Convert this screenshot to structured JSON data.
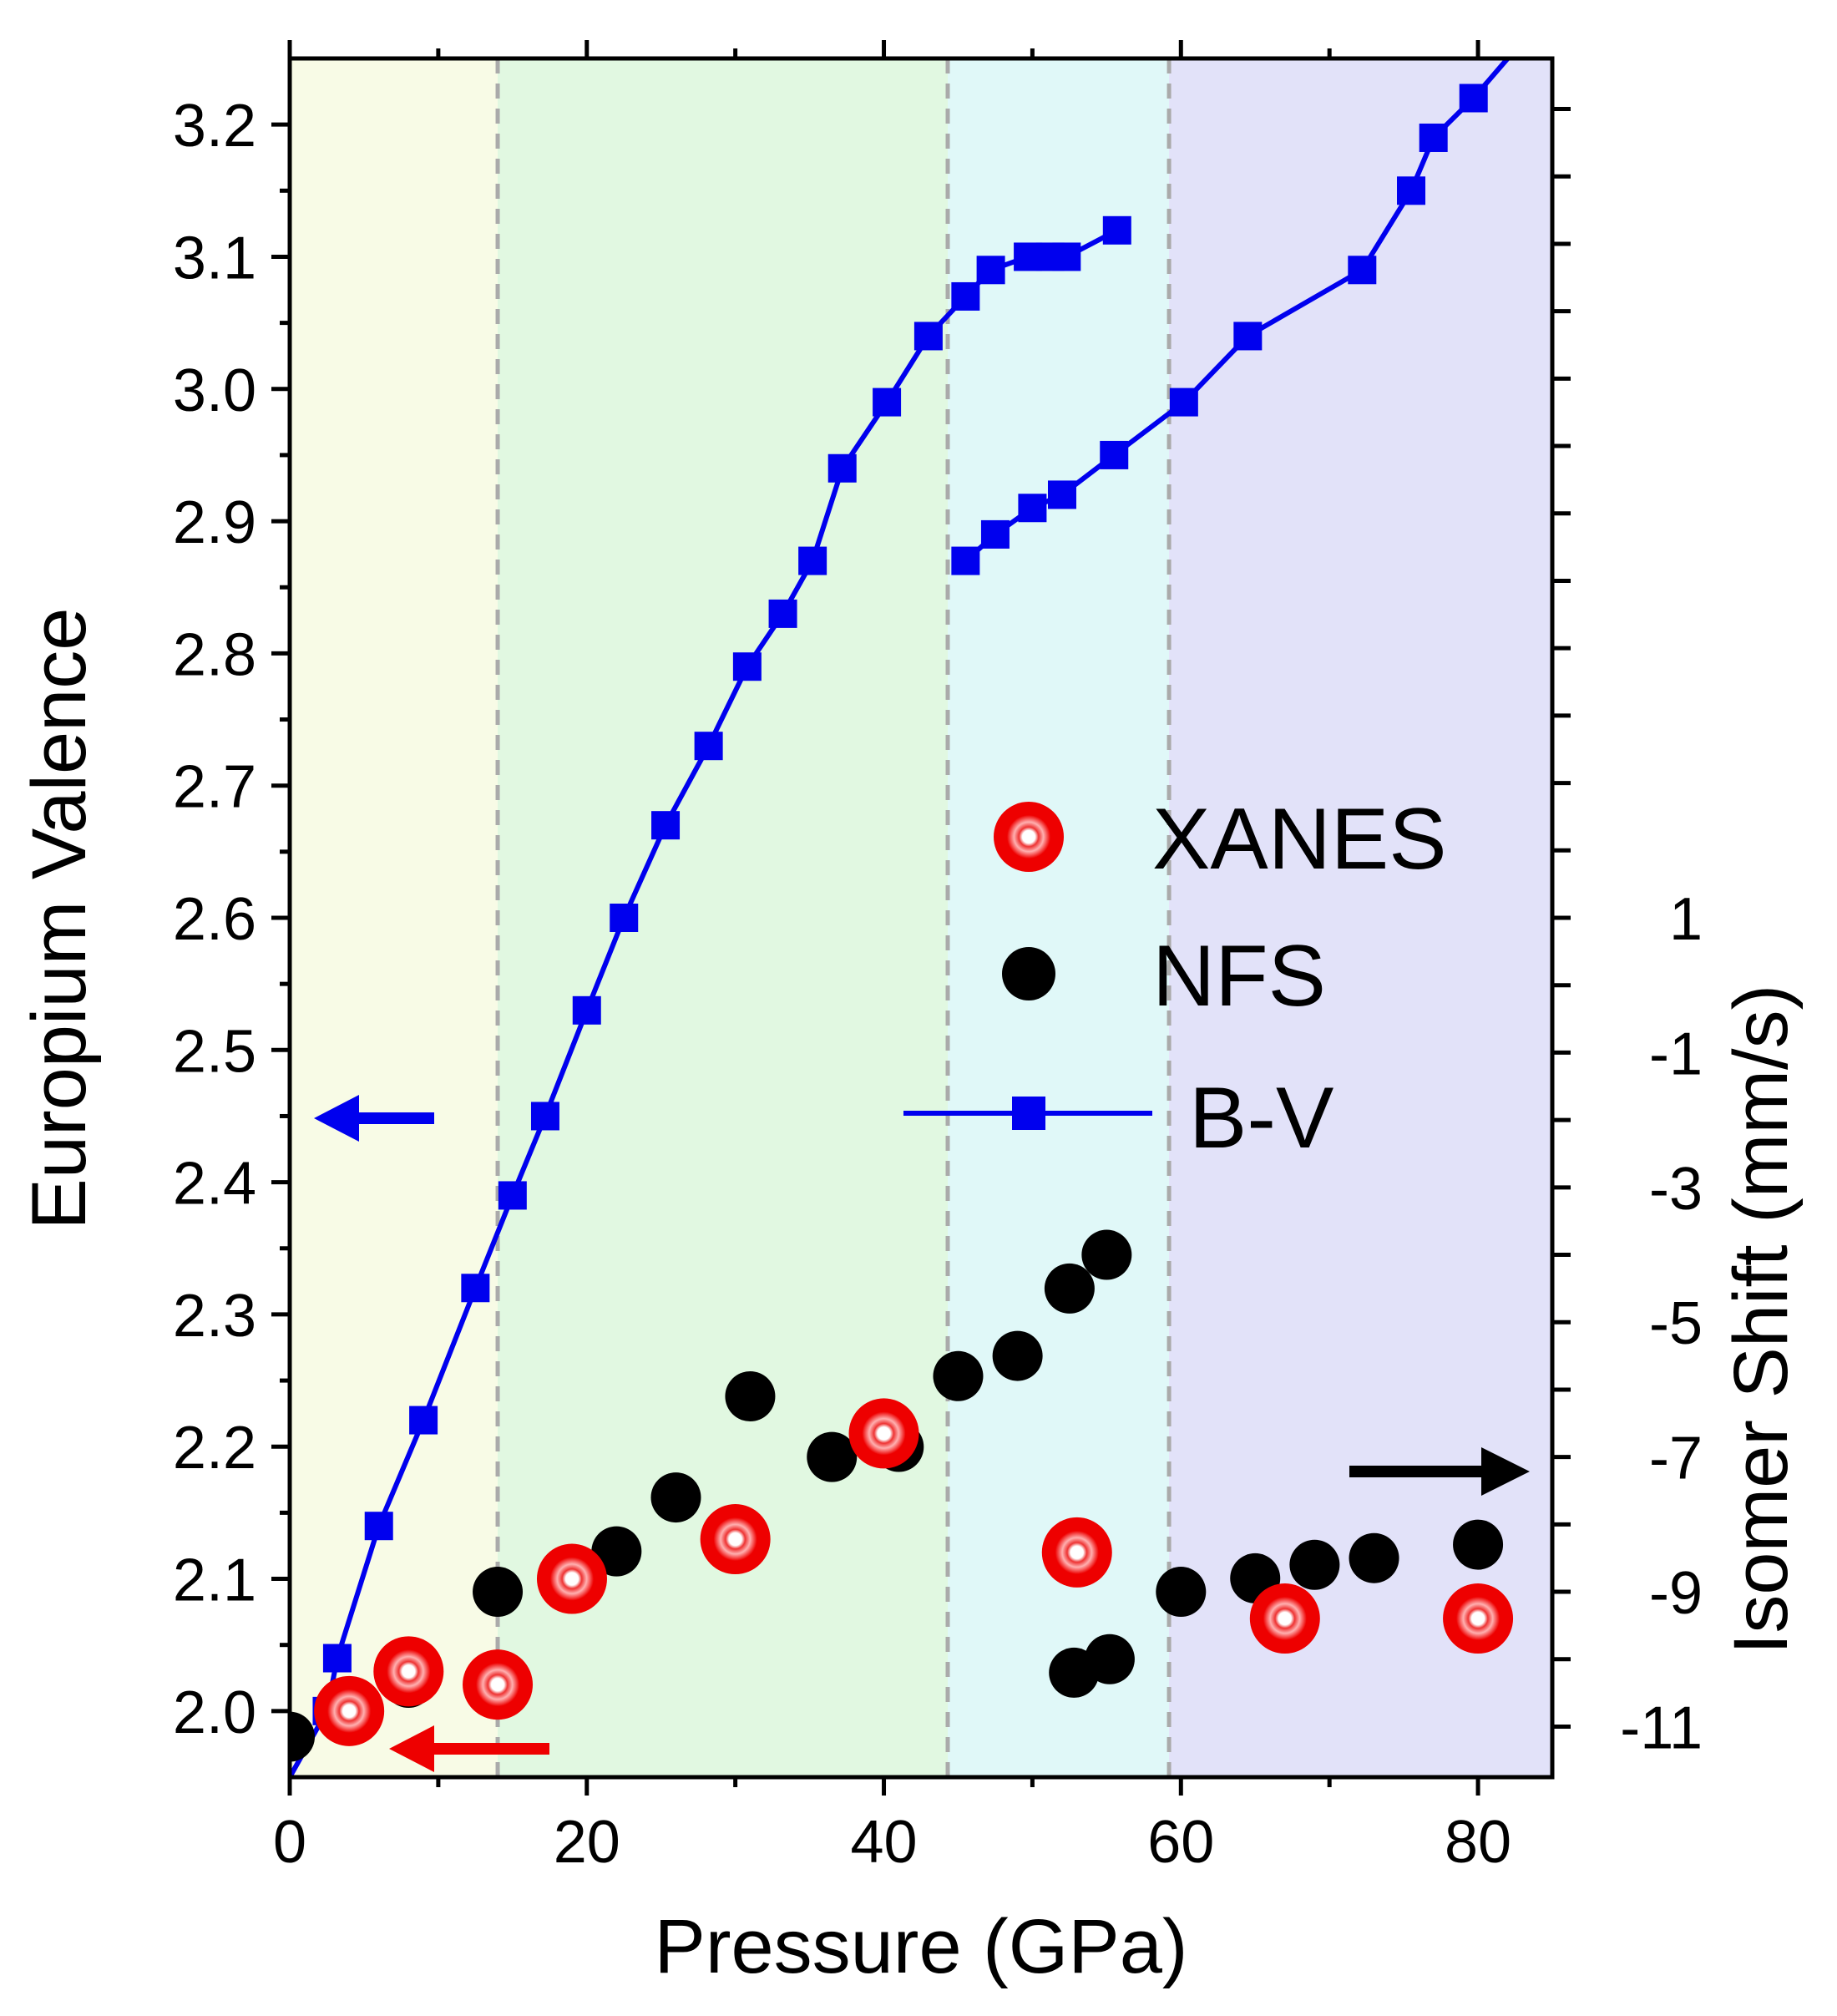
{
  "chart_data": {
    "type": "scatter",
    "xlabel": "Pressure (GPa)",
    "ylabel": "Europium Valence",
    "y2label": "Isomer Shift (mm/s)",
    "xlim": [
      0,
      85
    ],
    "ylim": [
      1.95,
      3.25
    ],
    "y2lim": [
      -11.75,
      13.75
    ],
    "xticks": [
      0,
      20,
      40,
      60,
      80
    ],
    "xtick_labels": [
      "0",
      "20",
      "40",
      "60",
      "80"
    ],
    "yticks": [
      2.0,
      2.1,
      2.2,
      2.3,
      2.4,
      2.5,
      2.6,
      2.7,
      2.8,
      2.9,
      3.0,
      3.1,
      3.2
    ],
    "ytick_labels": [
      "2.0",
      "2.1",
      "2.2",
      "2.3",
      "2.4",
      "2.5",
      "2.6",
      "2.7",
      "2.8",
      "2.9",
      "3.0",
      "3.1",
      "3.2"
    ],
    "y2ticks": [
      -11,
      -9,
      -7,
      -5,
      -3,
      -1,
      1
    ],
    "y2tick_labels": [
      "-11",
      "-9",
      "-7",
      "-5",
      "-3",
      "-1",
      "1"
    ],
    "y2_minor_ticks": [
      -10,
      -8,
      -6,
      -4,
      -2,
      0,
      2,
      3,
      4,
      5,
      6,
      7,
      8,
      9,
      10,
      11,
      12,
      13
    ],
    "phase_regions": [
      {
        "x": [
          0,
          14
        ],
        "color": "#f8fbe6"
      },
      {
        "x": [
          14,
          44.3
        ],
        "color": "#e1f8e1"
      },
      {
        "x": [
          44.3,
          59.2
        ],
        "color": "#e0f8f8"
      },
      {
        "x": [
          59.2,
          85
        ],
        "color": "#e2e2f9"
      }
    ],
    "boundaries": [
      14,
      44.3,
      59.2
    ],
    "grid": false,
    "legend_position": "right-middle",
    "series": [
      {
        "name": "XANES",
        "axis": "left",
        "color": "#ee0000",
        "x": [
          4,
          8,
          14,
          19,
          30,
          40,
          53,
          67,
          80
        ],
        "y": [
          2.0,
          2.03,
          2.02,
          2.1,
          2.13,
          2.21,
          2.12,
          2.07,
          2.07
        ]
      },
      {
        "name": "NFS",
        "axis": "right",
        "color": "#000000",
        "x": [
          0,
          8,
          14,
          22,
          26,
          31,
          36.5,
          41,
          45,
          49,
          52.5,
          55,
          52.8,
          55.2,
          60,
          65,
          69,
          73,
          80
        ],
        "y": [
          -11.15,
          -10.35,
          -9.0,
          -8.4,
          -7.6,
          -6.1,
          -7.0,
          -6.85,
          -5.8,
          -5.5,
          -4.5,
          -4.0,
          -10.2,
          -10.0,
          -9.0,
          -8.8,
          -8.6,
          -8.5,
          -8.3
        ]
      },
      {
        "name": "B-V",
        "axis": "left",
        "color": "#0000ee",
        "x": [
          0,
          2.5,
          3.2,
          6,
          9,
          12.5,
          15,
          17.2,
          20,
          22.5,
          25.3,
          28.2,
          30.8,
          33.2,
          35.2,
          37.2,
          40.2,
          43,
          45.5,
          47.2,
          49.7,
          51.2,
          52.3,
          55.7
        ],
        "y": [
          1.95,
          2.0,
          2.04,
          2.14,
          2.22,
          2.32,
          2.39,
          2.45,
          2.53,
          2.6,
          2.67,
          2.73,
          2.79,
          2.83,
          2.87,
          2.94,
          2.99,
          3.04,
          3.07,
          3.09,
          3.1,
          3.1,
          3.1,
          3.12
        ]
      },
      {
        "name": "",
        "axis": "left",
        "color": "#0000ee",
        "x": [
          45.5,
          47.5,
          50,
          52,
          55.5,
          60.2,
          64.5,
          72.2,
          75.5,
          77,
          79.7,
          82
        ],
        "y": [
          2.87,
          2.89,
          2.91,
          2.92,
          2.95,
          2.99,
          3.04,
          3.09,
          3.15,
          3.19,
          3.22,
          3.25
        ]
      }
    ]
  }
}
